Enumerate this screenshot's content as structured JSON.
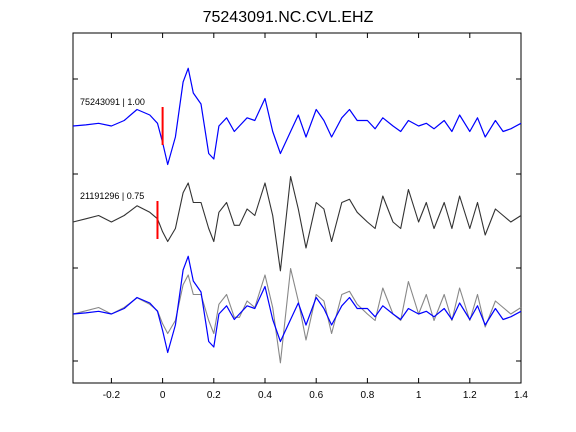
{
  "chart_data": {
    "type": "line",
    "title": "75243091.NC.CVL.EHZ",
    "xlabel": "",
    "ylabel": "",
    "xlim": [
      -0.35,
      1.4
    ],
    "x_ticks": [
      -0.2,
      0,
      0.2,
      0.4,
      0.6,
      0.8,
      1,
      1.2,
      1.4
    ],
    "x_tick_labels": [
      "-0.2",
      "0",
      "0.2",
      "0.4",
      "0.6",
      "0.8",
      "1",
      "1.2",
      "1.4"
    ],
    "grid": false,
    "colors": {
      "blue": "#0000ff",
      "gray_dark": "#333333",
      "gray_light": "#888888",
      "pick": "#ff0000",
      "axis": "#000000"
    },
    "traces": [
      {
        "label": "75243091 | 1.00",
        "color": "#0000ff",
        "pick_time": 0.0
      },
      {
        "label": "21191296 | 0.75",
        "color": "#333333",
        "pick_time": -0.02
      },
      {
        "label": "",
        "color": "overlay",
        "pick_time": null
      }
    ],
    "series": [
      {
        "color": "#0000ff",
        "x": [
          -0.35,
          -0.3,
          -0.25,
          -0.2,
          -0.15,
          -0.1,
          -0.05,
          -0.02,
          0,
          0.02,
          0.05,
          0.08,
          0.1,
          0.12,
          0.15,
          0.18,
          0.2,
          0.22,
          0.25,
          0.28,
          0.3,
          0.33,
          0.36,
          0.4,
          0.43,
          0.46,
          0.5,
          0.53,
          0.56,
          0.6,
          0.63,
          0.66,
          0.7,
          0.73,
          0.76,
          0.8,
          0.83,
          0.86,
          0.9,
          0.93,
          0.96,
          1.0,
          1.03,
          1.06,
          1.1,
          1.13,
          1.16,
          1.2,
          1.23,
          1.26,
          1.3,
          1.33,
          1.36,
          1.4
        ],
        "y": [
          0.0,
          0.02,
          0.05,
          0.0,
          0.1,
          0.3,
          0.2,
          0.05,
          -0.3,
          -0.7,
          -0.2,
          0.8,
          1.05,
          0.6,
          0.4,
          -0.5,
          -0.6,
          0.0,
          0.15,
          -0.1,
          0.0,
          0.15,
          0.1,
          0.5,
          -0.1,
          -0.5,
          -0.1,
          0.2,
          -0.2,
          0.3,
          0.1,
          -0.2,
          0.15,
          0.3,
          0.1,
          0.1,
          -0.05,
          0.15,
          0.0,
          -0.1,
          0.1,
          0.0,
          0.05,
          -0.05,
          0.1,
          -0.1,
          0.2,
          -0.1,
          0.15,
          -0.2,
          0.1,
          -0.1,
          -0.05,
          0.05
        ]
      },
      {
        "color": "#333333",
        "x": [
          -0.35,
          -0.3,
          -0.25,
          -0.2,
          -0.15,
          -0.1,
          -0.05,
          -0.02,
          0,
          0.02,
          0.05,
          0.08,
          0.1,
          0.12,
          0.15,
          0.18,
          0.2,
          0.22,
          0.25,
          0.28,
          0.3,
          0.33,
          0.36,
          0.4,
          0.43,
          0.46,
          0.5,
          0.53,
          0.56,
          0.6,
          0.63,
          0.66,
          0.7,
          0.73,
          0.76,
          0.8,
          0.83,
          0.86,
          0.9,
          0.93,
          0.96,
          1.0,
          1.03,
          1.06,
          1.1,
          1.13,
          1.16,
          1.2,
          1.23,
          1.26,
          1.3,
          1.33,
          1.36,
          1.4
        ],
        "y": [
          0.0,
          0.05,
          0.1,
          0.0,
          0.1,
          0.25,
          0.15,
          0.05,
          -0.15,
          -0.3,
          -0.1,
          0.45,
          0.6,
          0.3,
          0.3,
          -0.1,
          -0.3,
          0.15,
          0.3,
          -0.05,
          -0.05,
          0.2,
          0.1,
          0.6,
          0.1,
          -0.75,
          0.7,
          0.2,
          -0.4,
          0.3,
          0.2,
          -0.3,
          0.3,
          0.35,
          0.15,
          0.0,
          -0.1,
          0.4,
          0.0,
          -0.1,
          0.5,
          0.0,
          0.3,
          -0.1,
          0.3,
          -0.1,
          0.4,
          -0.1,
          0.3,
          -0.2,
          0.2,
          0.1,
          0.0,
          0.1
        ]
      }
    ]
  }
}
